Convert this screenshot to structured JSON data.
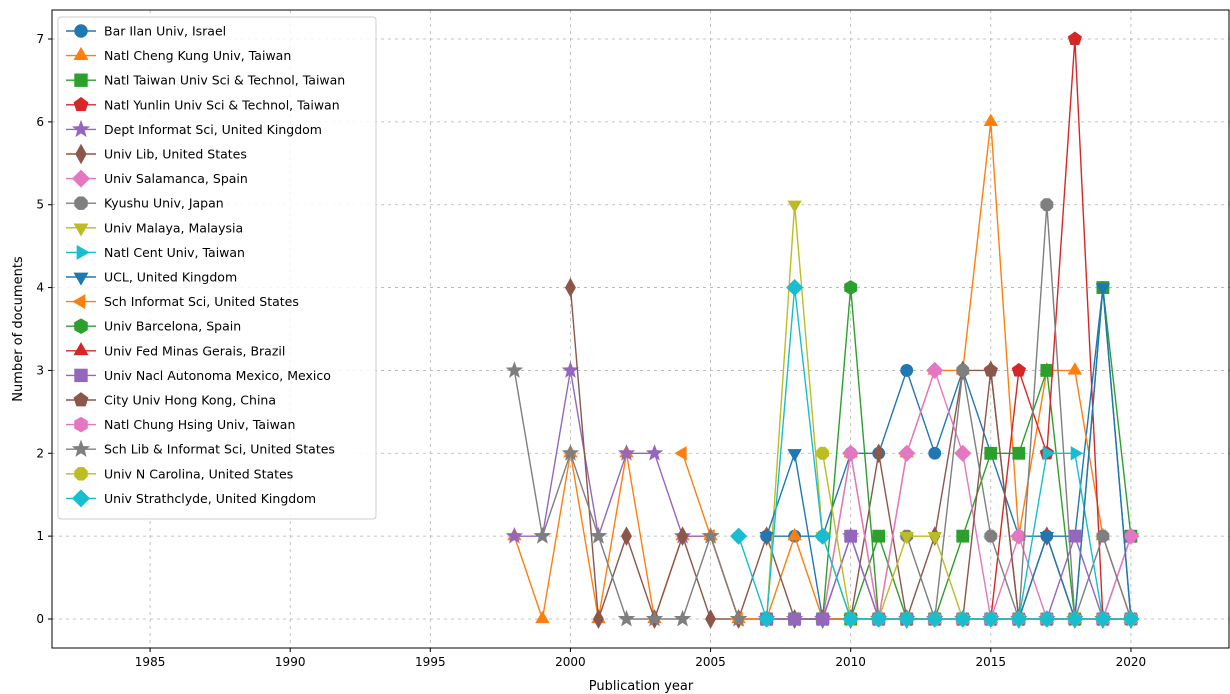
{
  "chart_data": {
    "type": "line",
    "title": "",
    "xlabel": "Publication year",
    "ylabel": "Number of documents",
    "xlim": [
      1981.5,
      2023.5
    ],
    "ylim": [
      -0.35,
      7.35
    ],
    "xticks": [
      1985,
      1990,
      1995,
      2000,
      2005,
      2010,
      2015,
      2020
    ],
    "yticks": [
      0,
      1,
      2,
      3,
      4,
      5,
      6,
      7
    ],
    "grid": true,
    "legend_position": "upper-left",
    "series": [
      {
        "name": "Bar Ilan Univ, Israel",
        "color": "#1f77b4",
        "marker": "circle",
        "x": [
          2007,
          2008,
          2009,
          2010,
          2011,
          2012,
          2013,
          2014,
          2015,
          2016,
          2017,
          2018,
          2019,
          2020
        ],
        "y": [
          1,
          1,
          1,
          2,
          2,
          3,
          2,
          3,
          2,
          1,
          1,
          1,
          4,
          0
        ]
      },
      {
        "name": "Natl Cheng Kung Univ, Taiwan",
        "color": "#ff7f0e",
        "marker": "triangle-up",
        "x": [
          1998,
          1999,
          2000,
          2001,
          2002,
          2003,
          2004,
          2005,
          2006,
          2007,
          2008,
          2009,
          2010,
          2011,
          2012,
          2013,
          2014,
          2015,
          2016,
          2017,
          2018,
          2019,
          2020
        ],
        "y": [
          1,
          0,
          2,
          0,
          2,
          0,
          1,
          1,
          0,
          0,
          1,
          0,
          2,
          0,
          2,
          3,
          3,
          6,
          1,
          3,
          3,
          1,
          0
        ]
      },
      {
        "name": "Natl Taiwan Univ Sci & Technol, Taiwan",
        "color": "#2ca02c",
        "marker": "square",
        "x": [
          2007,
          2008,
          2009,
          2010,
          2011,
          2012,
          2013,
          2014,
          2015,
          2016,
          2017,
          2018,
          2019,
          2020
        ],
        "y": [
          0,
          0,
          0,
          0,
          1,
          0,
          0,
          1,
          2,
          2,
          3,
          0,
          4,
          1
        ]
      },
      {
        "name": "Natl Yunlin Univ Sci & Technol, Taiwan",
        "color": "#d62728",
        "marker": "pentagon",
        "x": [
          2011,
          2012,
          2013,
          2014,
          2015,
          2016,
          2017,
          2018,
          2019,
          2020
        ],
        "y": [
          0,
          0,
          0,
          0,
          0,
          3,
          2,
          7,
          0,
          0
        ]
      },
      {
        "name": "Dept Informat Sci, United Kingdom",
        "color": "#9467bd",
        "marker": "star",
        "x": [
          1998,
          1999,
          2000,
          2001,
          2002,
          2003,
          2004,
          2005,
          2006,
          2007,
          2008,
          2009,
          2010,
          2011,
          2012,
          2013,
          2014,
          2015,
          2016,
          2017,
          2018,
          2019,
          2020
        ],
        "y": [
          1,
          1,
          3,
          1,
          2,
          2,
          1,
          1,
          0,
          0,
          0,
          0,
          1,
          0,
          0,
          0,
          0,
          0,
          0,
          0,
          0,
          0,
          1
        ]
      },
      {
        "name": "Univ Lib, United States",
        "color": "#8c564b",
        "marker": "diamond-thin",
        "x": [
          2000,
          2001,
          2002,
          2003,
          2004,
          2005,
          2006,
          2007,
          2008,
          2009,
          2010,
          2011,
          2012,
          2013,
          2014,
          2015,
          2016,
          2017,
          2018,
          2019,
          2020
        ],
        "y": [
          4,
          0,
          1,
          0,
          1,
          0,
          0,
          1,
          0,
          0,
          0,
          2,
          0,
          1,
          3,
          3,
          0,
          1,
          0,
          0,
          0
        ]
      },
      {
        "name": "Univ Salamanca, Spain",
        "color": "#e377c2",
        "marker": "diamond",
        "x": [
          2009,
          2010,
          2011,
          2012,
          2013,
          2014,
          2015,
          2016,
          2017,
          2018,
          2019,
          2020
        ],
        "y": [
          0,
          2,
          0,
          2,
          3,
          2,
          0,
          1,
          0,
          0,
          0,
          1
        ]
      },
      {
        "name": "Kyushu Univ, Japan",
        "color": "#7f7f7f",
        "marker": "octagon",
        "x": [
          2012,
          2013,
          2014,
          2015,
          2016,
          2017,
          2018,
          2019,
          2020
        ],
        "y": [
          1,
          0,
          3,
          1,
          0,
          5,
          0,
          1,
          0
        ]
      },
      {
        "name": "Univ Malaya, Malaysia",
        "color": "#bcbd22",
        "marker": "triangle-down",
        "x": [
          2007,
          2008,
          2009,
          2010,
          2011,
          2012,
          2013,
          2014,
          2015,
          2016,
          2017,
          2018,
          2019,
          2020
        ],
        "y": [
          0,
          5,
          1,
          0,
          0,
          1,
          1,
          0,
          0,
          0,
          0,
          0,
          0,
          0
        ]
      },
      {
        "name": "Natl Cent Univ, Taiwan",
        "color": "#17becf",
        "marker": "triangle-right",
        "x": [
          2007,
          2008,
          2009,
          2010,
          2011,
          2012,
          2013,
          2014,
          2015,
          2016,
          2017,
          2018,
          2019,
          2020
        ],
        "y": [
          0,
          0,
          0,
          0,
          0,
          0,
          0,
          0,
          0,
          0,
          2,
          2,
          0,
          0
        ]
      },
      {
        "name": "UCL, United Kingdom",
        "color": "#1f77b4",
        "marker": "triangle-down",
        "x": [
          2007,
          2008,
          2009,
          2010,
          2011,
          2012,
          2013,
          2014,
          2015,
          2016,
          2017,
          2018,
          2019,
          2020
        ],
        "y": [
          1,
          2,
          0,
          0,
          0,
          0,
          0,
          0,
          0,
          0,
          1,
          0,
          4,
          0
        ]
      },
      {
        "name": "Sch Informat Sci, United States",
        "color": "#ff7f0e",
        "marker": "triangle-left",
        "x": [
          2004,
          2005,
          2006,
          2007,
          2008,
          2009,
          2010,
          2011,
          2012,
          2013,
          2014,
          2015,
          2016,
          2017,
          2018,
          2019,
          2020
        ],
        "y": [
          2,
          1,
          0,
          0,
          0,
          0,
          0,
          0,
          0,
          0,
          0,
          0,
          0,
          0,
          0,
          0,
          0
        ]
      },
      {
        "name": "Univ Barcelona, Spain",
        "color": "#2ca02c",
        "marker": "hexagon",
        "x": [
          2008,
          2009,
          2010,
          2011,
          2012,
          2013,
          2014,
          2015,
          2016,
          2017,
          2018,
          2019,
          2020
        ],
        "y": [
          0,
          0,
          4,
          0,
          0,
          0,
          0,
          0,
          0,
          0,
          0,
          0,
          0
        ]
      },
      {
        "name": "Univ Fed Minas Gerais, Brazil",
        "color": "#d62728",
        "marker": "triangle-up",
        "x": [
          2013,
          2014,
          2015,
          2016,
          2017,
          2018,
          2019,
          2020
        ],
        "y": [
          0,
          0,
          0,
          0,
          0,
          0,
          0,
          0
        ]
      },
      {
        "name": "Univ Nacl Autonoma Mexico, Mexico",
        "color": "#9467bd",
        "marker": "square",
        "x": [
          2007,
          2008,
          2009,
          2010,
          2011,
          2012,
          2013,
          2014,
          2015,
          2016,
          2017,
          2018,
          2019,
          2020
        ],
        "y": [
          0,
          0,
          0,
          1,
          0,
          0,
          0,
          0,
          0,
          0,
          0,
          1,
          0,
          0
        ]
      },
      {
        "name": "City Univ Hong Kong, China",
        "color": "#8c564b",
        "marker": "pentagon",
        "x": [
          2012,
          2013,
          2014,
          2015,
          2016,
          2017,
          2018,
          2019,
          2020
        ],
        "y": [
          0,
          0,
          0,
          3,
          0,
          0,
          0,
          0,
          0
        ]
      },
      {
        "name": "Natl Chung Hsing Univ, Taiwan",
        "color": "#e377c2",
        "marker": "hexagon",
        "x": [
          2013,
          2014,
          2015,
          2016,
          2017,
          2018,
          2019,
          2020
        ],
        "y": [
          0,
          0,
          0,
          0,
          0,
          0,
          0,
          0
        ]
      },
      {
        "name": "Sch Lib & Informat Sci, United States",
        "color": "#7f7f7f",
        "marker": "star",
        "x": [
          1998,
          1999,
          2000,
          2001,
          2002,
          2003,
          2004,
          2005,
          2006
        ],
        "y": [
          3,
          1,
          2,
          1,
          0,
          0,
          0,
          1,
          0
        ]
      },
      {
        "name": "Univ N Carolina, United States",
        "color": "#bcbd22",
        "marker": "octagon",
        "x": [
          2009,
          2010,
          2011,
          2012,
          2013,
          2014,
          2015,
          2016,
          2017,
          2018,
          2019,
          2020
        ],
        "y": [
          2,
          0,
          0,
          0,
          0,
          0,
          0,
          0,
          0,
          0,
          0,
          0
        ]
      },
      {
        "name": "Univ Strathclyde, United Kingdom",
        "color": "#17becf",
        "marker": "diamond",
        "x": [
          2006,
          2007,
          2008,
          2009,
          2010,
          2011,
          2012,
          2013,
          2014,
          2015,
          2016,
          2017,
          2018,
          2019,
          2020
        ],
        "y": [
          1,
          0,
          4,
          1,
          0,
          0,
          0,
          0,
          0,
          0,
          0,
          0,
          0,
          0,
          0
        ]
      }
    ]
  }
}
